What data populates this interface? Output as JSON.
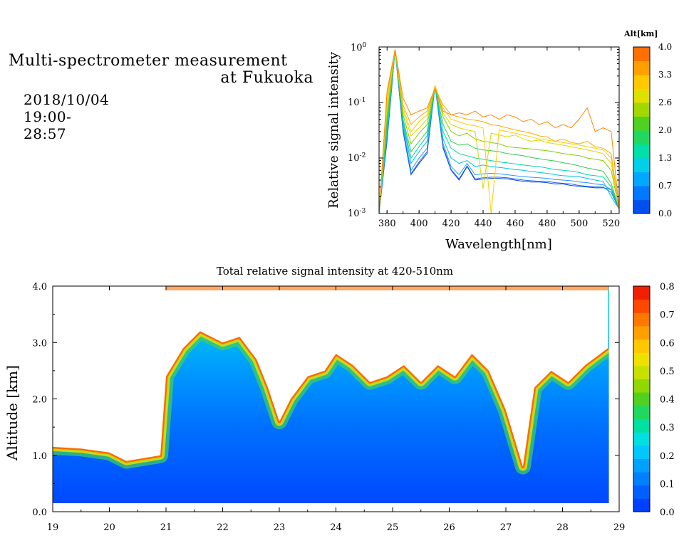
{
  "header": {
    "title_line1": "Multi-spectrometer measurement",
    "title_line2": "at Fukuoka",
    "date_range": "2018/10/04 19:00-28:57"
  },
  "chart_data": [
    {
      "type": "line",
      "title": "",
      "xlabel": "Wavelength[nm]",
      "ylabel": "Relative signal intensity",
      "yscale": "log",
      "xlim": [
        375,
        525
      ],
      "ylim": [
        0.001,
        1
      ],
      "x_ticks": [
        380,
        400,
        420,
        440,
        460,
        480,
        500,
        520
      ],
      "x_tick_labels": [
        "380",
        "400",
        "420",
        "440",
        "460",
        "480",
        "500",
        "520"
      ],
      "y_tick_labels": [
        "10^-3",
        "10^-2",
        "10^-1",
        "10^0"
      ],
      "x": [
        375,
        380,
        385,
        390,
        395,
        400,
        405,
        410,
        415,
        420,
        425,
        430,
        435,
        440,
        445,
        450,
        455,
        460,
        465,
        470,
        475,
        480,
        485,
        490,
        495,
        500,
        505,
        510,
        515,
        520,
        525
      ],
      "colorbar": {
        "title": "Alt[km]",
        "tick_labels": [
          "0.0",
          "0.7",
          "1.3",
          "2.0",
          "2.6",
          "3.3",
          "4.0"
        ],
        "colors": [
          "#0050f0",
          "#0078ff",
          "#00a8ff",
          "#00d0e8",
          "#00e0a8",
          "#20d860",
          "#50d020",
          "#a0d800",
          "#e0e000",
          "#ffc800",
          "#ffa000",
          "#ff7000"
        ]
      },
      "series": [
        {
          "color": "#0044dd",
          "values": [
            0.001,
            0.02,
            0.9,
            0.03,
            0.005,
            0.008,
            0.012,
            0.2,
            0.015,
            0.006,
            0.004,
            0.007,
            0.004,
            0.0042,
            0.0043,
            0.0043,
            0.0042,
            0.004,
            0.0038,
            0.0037,
            0.0037,
            0.0036,
            0.0034,
            0.0034,
            0.0032,
            0.0031,
            0.003,
            0.0029,
            0.0029,
            0.0027,
            0.0012
          ]
        },
        {
          "color": "#2266ee",
          "values": [
            0.001,
            0.022,
            0.9,
            0.032,
            0.0052,
            0.0085,
            0.013,
            0.2,
            0.016,
            0.0062,
            0.0042,
            0.0072,
            0.0042,
            0.0044,
            0.0045,
            0.0045,
            0.0044,
            0.0042,
            0.004,
            0.0039,
            0.0038,
            0.0038,
            0.0036,
            0.0035,
            0.0034,
            0.0032,
            0.0031,
            0.003,
            0.003,
            0.0024,
            0.0012
          ]
        },
        {
          "color": "#2299ff",
          "values": [
            0.001,
            0.025,
            0.9,
            0.035,
            0.006,
            0.01,
            0.015,
            0.2,
            0.018,
            0.007,
            0.005,
            0.008,
            0.005,
            0.0052,
            0.0053,
            0.0052,
            0.005,
            0.0048,
            0.0046,
            0.0045,
            0.0044,
            0.0043,
            0.0041,
            0.004,
            0.0039,
            0.0037,
            0.0036,
            0.0034,
            0.0033,
            0.0027,
            0.0012
          ]
        },
        {
          "color": "#00c0e0",
          "values": [
            0.001,
            0.03,
            0.9,
            0.04,
            0.008,
            0.013,
            0.02,
            0.19,
            0.022,
            0.01,
            0.008,
            0.009,
            0.007,
            0.0075,
            0.007,
            0.0068,
            0.0065,
            0.0062,
            0.006,
            0.0057,
            0.0055,
            0.0053,
            0.005,
            0.0048,
            0.0047,
            0.0046,
            0.0043,
            0.004,
            0.0038,
            0.002,
            0.0012
          ]
        },
        {
          "color": "#00d8a0",
          "values": [
            0.001,
            0.035,
            0.9,
            0.045,
            0.01,
            0.016,
            0.025,
            0.19,
            0.03,
            0.015,
            0.012,
            0.011,
            0.01,
            0.0095,
            0.009,
            0.0085,
            0.0082,
            0.0078,
            0.0075,
            0.0072,
            0.007,
            0.0066,
            0.0062,
            0.006,
            0.0058,
            0.0055,
            0.005,
            0.0048,
            0.0046,
            0.003,
            0.0012
          ]
        },
        {
          "color": "#30cc50",
          "values": [
            0.001,
            0.045,
            0.9,
            0.05,
            0.013,
            0.02,
            0.03,
            0.19,
            0.04,
            0.02,
            0.017,
            0.018,
            0.015,
            0.014,
            0.0135,
            0.013,
            0.012,
            0.0115,
            0.011,
            0.0102,
            0.0097,
            0.0092,
            0.0088,
            0.0082,
            0.0078,
            0.0072,
            0.0066,
            0.0062,
            0.0058,
            0.0035,
            0.0012
          ]
        },
        {
          "color": "#88cc00",
          "values": [
            0.001,
            0.06,
            0.9,
            0.06,
            0.018,
            0.028,
            0.04,
            0.2,
            0.055,
            0.03,
            0.025,
            0.028,
            0.022,
            0.02,
            0.019,
            0.018,
            0.016,
            0.0155,
            0.015,
            0.0145,
            0.014,
            0.0135,
            0.0128,
            0.012,
            0.0115,
            0.011,
            0.01,
            0.0095,
            0.009,
            0.006,
            0.0012
          ]
        },
        {
          "color": "#d8d800",
          "values": [
            0.001,
            0.08,
            0.9,
            0.07,
            0.025,
            0.035,
            0.05,
            0.2,
            0.065,
            0.04,
            0.035,
            0.032,
            0.03,
            0.0028,
            0.028,
            0.026,
            0.024,
            0.026,
            0.022,
            0.02,
            0.021,
            0.019,
            0.018,
            0.017,
            0.016,
            0.015,
            0.014,
            0.013,
            0.012,
            0.008,
            0.0012
          ]
        },
        {
          "color": "#ffcc00",
          "values": [
            0.001,
            0.1,
            0.9,
            0.08,
            0.03,
            0.045,
            0.06,
            0.2,
            0.08,
            0.05,
            0.045,
            0.04,
            0.038,
            0.035,
            0.001,
            0.032,
            0.03,
            0.028,
            0.026,
            0.024,
            0.022,
            0.021,
            0.02,
            0.019,
            0.018,
            0.017,
            0.016,
            0.015,
            0.014,
            0.01,
            0.0012
          ]
        },
        {
          "color": "#ffaa00",
          "values": [
            0.001,
            0.13,
            0.9,
            0.09,
            0.04,
            0.055,
            0.07,
            0.18,
            0.09,
            0.06,
            0.055,
            0.05,
            0.048,
            0.045,
            0.04,
            0.038,
            0.035,
            0.032,
            0.03,
            0.028,
            0.025,
            0.024,
            0.02,
            0.022,
            0.019,
            0.018,
            0.02,
            0.016,
            0.015,
            0.012,
            0.0012
          ]
        },
        {
          "color": "#ff8800",
          "values": [
            0.001,
            0.16,
            0.9,
            0.12,
            0.06,
            0.07,
            0.08,
            0.18,
            0.07,
            0.06,
            0.065,
            0.06,
            0.07,
            0.055,
            0.06,
            0.05,
            0.06,
            0.055,
            0.045,
            0.05,
            0.04,
            0.045,
            0.035,
            0.04,
            0.035,
            0.05,
            0.08,
            0.03,
            0.035,
            0.03,
            0.0012
          ]
        }
      ]
    },
    {
      "type": "heatmap",
      "title": "Total relative signal intensity at 420-510nm",
      "xlabel": "",
      "ylabel": "Altitude [km]",
      "xlim": [
        19,
        29
      ],
      "ylim": [
        0,
        4
      ],
      "x_ticks": [
        19,
        20,
        21,
        22,
        23,
        24,
        25,
        26,
        27,
        28,
        29
      ],
      "x_tick_labels": [
        "19",
        "20",
        "21",
        "22",
        "23",
        "24",
        "25",
        "26",
        "27",
        "28",
        "29"
      ],
      "y_ticks": [
        0,
        1,
        2,
        3,
        4
      ],
      "y_tick_labels": [
        "0.0",
        "1.0",
        "2.0",
        "3.0",
        "4.0"
      ],
      "colorbar": {
        "range": [
          0,
          0.8
        ],
        "tick_labels": [
          "0.0",
          "0.1",
          "0.2",
          "0.3",
          "0.4",
          "0.5",
          "0.6",
          "0.7",
          "0.8"
        ],
        "colors": [
          "#0040ff",
          "#0060ff",
          "#0080ff",
          "#00a0ff",
          "#00c8ff",
          "#00e0e0",
          "#00e0a0",
          "#20d860",
          "#50d020",
          "#90d800",
          "#c8e000",
          "#f0e000",
          "#ffc800",
          "#ffa000",
          "#ff7800",
          "#ff4800",
          "#f02000"
        ]
      },
      "data_extent_x": [
        19,
        28.82
      ],
      "data_extent_y": [
        0.15,
        4.0
      ],
      "cloud_base_km": [
        {
          "t": 19.0,
          "z": 1.15
        },
        {
          "t": 19.5,
          "z": 1.12
        },
        {
          "t": 20.0,
          "z": 1.05
        },
        {
          "t": 20.3,
          "z": 0.9
        },
        {
          "t": 20.6,
          "z": 0.95
        },
        {
          "t": 20.9,
          "z": 1.0
        },
        {
          "t": 21.0,
          "z": 2.4
        },
        {
          "t": 21.3,
          "z": 2.9
        },
        {
          "t": 21.6,
          "z": 3.2
        },
        {
          "t": 22.0,
          "z": 3.0
        },
        {
          "t": 22.3,
          "z": 3.1
        },
        {
          "t": 22.6,
          "z": 2.7
        },
        {
          "t": 22.8,
          "z": 2.2
        },
        {
          "t": 23.0,
          "z": 1.6
        },
        {
          "t": 23.2,
          "z": 2.0
        },
        {
          "t": 23.5,
          "z": 2.4
        },
        {
          "t": 23.8,
          "z": 2.5
        },
        {
          "t": 24.0,
          "z": 2.8
        },
        {
          "t": 24.3,
          "z": 2.6
        },
        {
          "t": 24.6,
          "z": 2.3
        },
        {
          "t": 24.9,
          "z": 2.4
        },
        {
          "t": 25.2,
          "z": 2.6
        },
        {
          "t": 25.5,
          "z": 2.3
        },
        {
          "t": 25.8,
          "z": 2.6
        },
        {
          "t": 26.1,
          "z": 2.4
        },
        {
          "t": 26.4,
          "z": 2.8
        },
        {
          "t": 26.7,
          "z": 2.5
        },
        {
          "t": 27.0,
          "z": 1.8
        },
        {
          "t": 27.3,
          "z": 0.8
        },
        {
          "t": 27.5,
          "z": 2.2
        },
        {
          "t": 27.8,
          "z": 2.5
        },
        {
          "t": 28.1,
          "z": 2.3
        },
        {
          "t": 28.4,
          "z": 2.6
        },
        {
          "t": 28.8,
          "z": 2.9
        }
      ]
    }
  ]
}
